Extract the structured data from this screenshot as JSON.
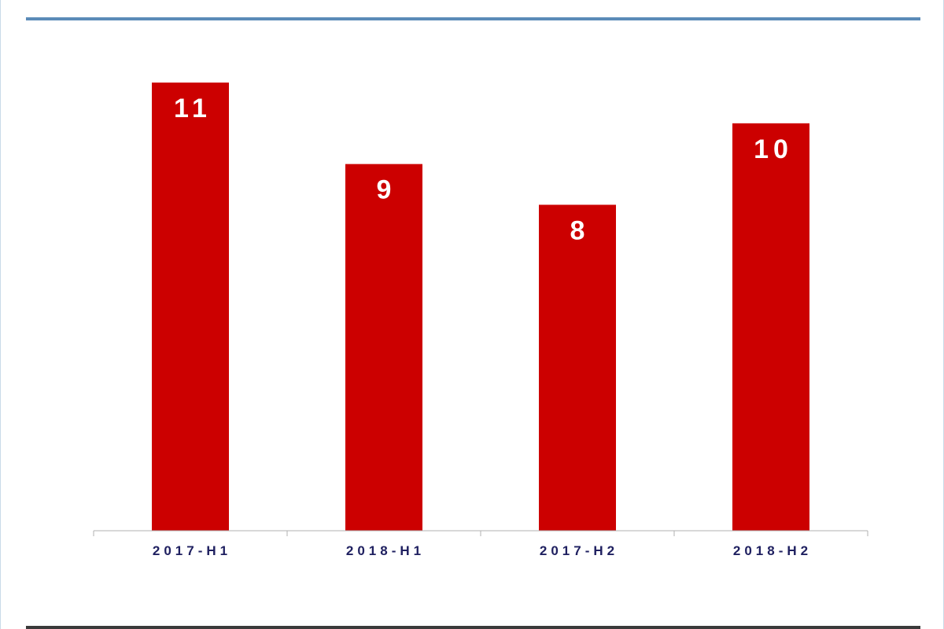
{
  "chart_data": {
    "type": "bar",
    "categories": [
      "2017-H1",
      "2018-H1",
      "2017-H2",
      "2018-H2"
    ],
    "values": [
      11,
      9,
      8,
      10
    ],
    "data_labels": [
      "11",
      "9",
      "8",
      "10"
    ],
    "title": "",
    "xlabel": "",
    "ylabel": "",
    "ylim": [
      0,
      11
    ],
    "grid": false,
    "legend": "none",
    "colors": {
      "bar": "#cc0000",
      "axis": "#b0b0b0",
      "tick_text": "#1f2060",
      "top_rule": "#5b8bb8",
      "bottom_rule": "#3a3a3a"
    }
  }
}
